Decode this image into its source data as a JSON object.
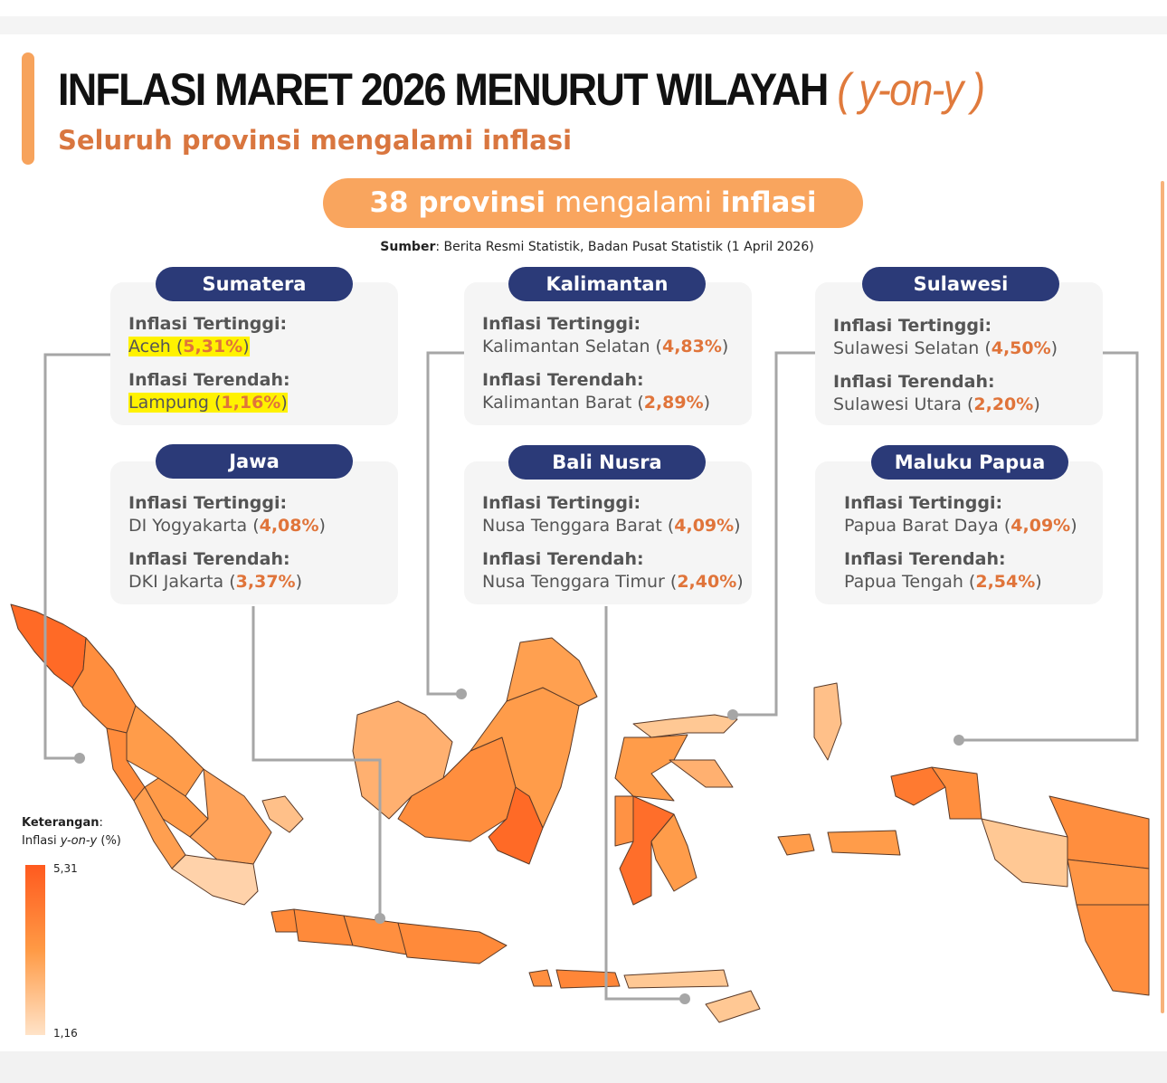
{
  "title": {
    "main": "INFLASI MARET 2026 MENURUT WILAYAH",
    "paren_open": "(",
    "yoy": "y-on-y",
    "paren_close": ")"
  },
  "subtitle": "Seluruh provinsi mengalami inflasi",
  "banner": {
    "count": "38 provinsi",
    "middle": "mengalami",
    "end": "inflasi"
  },
  "source": {
    "label": "Sumber",
    "text": ": Berita Resmi Statistik, Badan Pusat Statistik (1 April 2026)"
  },
  "regions": [
    {
      "name": "Sumatera",
      "high_label": "Inflasi Tertinggi:",
      "high_prov": "Aceh",
      "high_val": "5,31%",
      "low_label": "Inflasi Terendah:",
      "low_prov": "Lampung",
      "low_val": "1,16%",
      "highlighted": true
    },
    {
      "name": "Kalimantan",
      "high_label": "Inflasi Tertinggi:",
      "high_prov": "Kalimantan Selatan",
      "high_val": "4,83%",
      "low_label": "Inflasi Terendah:",
      "low_prov": "Kalimantan Barat",
      "low_val": "2,89%"
    },
    {
      "name": "Sulawesi",
      "high_label": "Inflasi Tertinggi:",
      "high_prov": "Sulawesi Selatan",
      "high_val": "4,50%",
      "low_label": "Inflasi Terendah:",
      "low_prov": "Sulawesi Utara",
      "low_val": "2,20%"
    },
    {
      "name": "Jawa",
      "high_label": "Inflasi Tertinggi:",
      "high_prov": "DI Yogyakarta",
      "high_val": "4,08%",
      "low_label": "Inflasi Terendah:",
      "low_prov": "DKI Jakarta",
      "low_val": "3,37%"
    },
    {
      "name": "Bali Nusra",
      "high_label": "Inflasi Tertinggi:",
      "high_prov": "Nusa Tenggara Barat",
      "high_val": "4,09%",
      "low_label": "Inflasi Terendah:",
      "low_prov": "Nusa Tenggara Timur",
      "low_val": "2,40%"
    },
    {
      "name": "Maluku Papua",
      "high_label": "Inflasi Tertinggi:",
      "high_prov": "Papua Barat Daya",
      "high_val": "4,09%",
      "low_label": "Inflasi Terendah:",
      "low_prov": "Papua Tengah",
      "low_val": "2,54%"
    }
  ],
  "legend": {
    "title": "Keterangan",
    "colon": ":",
    "subtitle_prefix": "Inflasi ",
    "subtitle_yoy": "y-on-y",
    "subtitle_suffix": " (%)",
    "max": "5,31",
    "min": "1,16",
    "color_max": "#ff5a1f",
    "color_min": "#ffe3c8"
  },
  "colors": {
    "accent": "#f9a55e",
    "pill": "#2b3a78",
    "value": "#e0743a",
    "highlight": "#fff200"
  }
}
